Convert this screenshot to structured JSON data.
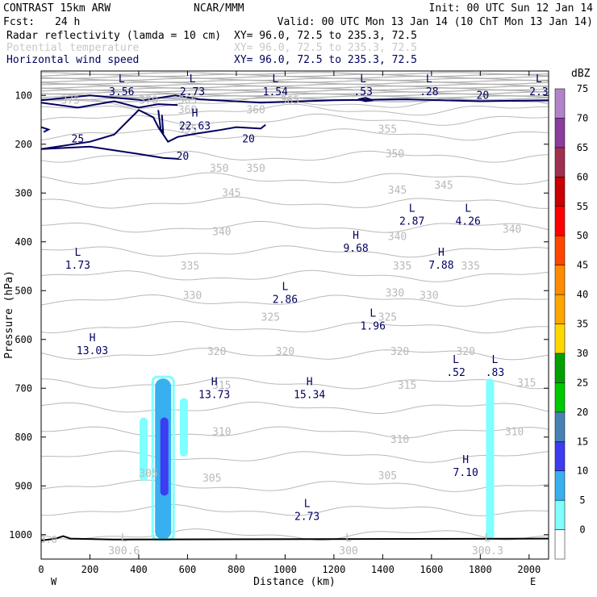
{
  "header": {
    "left1": "CONTRAST 15km ARW",
    "center1": "NCAR/MMM",
    "right1": "Init: 00 UTC Sun 12 Jan 14",
    "fcst_label": "Fcst:",
    "fcst_value": "24 h",
    "valid": "Valid: 00 UTC Mon 13 Jan 14 (10 ChT Mon 13 Jan 14)"
  },
  "fields": [
    {
      "name": "Radar reflectivity (lamda = 10 cm)",
      "xy": "XY=  96.0, 72.5 to 235.3, 72.5",
      "color": "#000000"
    },
    {
      "name": "Potential temperature",
      "xy": "XY=  96.0, 72.5 to 235.3, 72.5",
      "color": "#c8c8c8"
    },
    {
      "name": "Horizontal wind speed",
      "xy": "XY=  96.0, 72.5 to 235.3, 72.5",
      "color": "#000060"
    }
  ],
  "chart_data": {
    "type": "cross-section",
    "xlabel": "Distance (km)",
    "ylabel": "Pressure (hPa)",
    "xlim": [
      0,
      2080
    ],
    "ylim": [
      1050,
      50
    ],
    "xticks": [
      0,
      200,
      400,
      600,
      800,
      1000,
      1200,
      1400,
      1600,
      1800,
      2000
    ],
    "yticks": [
      100,
      200,
      300,
      400,
      500,
      600,
      700,
      800,
      900,
      1000
    ],
    "x_end_labels": {
      "left": "W",
      "right": "E"
    },
    "colorbar": {
      "title": "dBZ",
      "levels": [
        "0",
        "5",
        "10",
        "15",
        "20",
        "25",
        "30",
        "35",
        "40",
        "45",
        "50",
        "55",
        "60",
        "65",
        "70",
        "75"
      ],
      "colors": [
        "#ffffff",
        "#7fffff",
        "#38b0f0",
        "#3c3cf0",
        "#4682b4",
        "#00c800",
        "#00a000",
        "#ffd700",
        "#ffa500",
        "#ff8c00",
        "#ff4500",
        "#ff0000",
        "#c80000",
        "#a03050",
        "#8c3c9c",
        "#b482c8"
      ]
    },
    "reflectivity": [
      {
        "x": 500,
        "p_top": 680,
        "p_bot": 1010,
        "dbz": 10
      },
      {
        "x": 505,
        "p_top": 760,
        "p_bot": 920,
        "dbz": 15
      },
      {
        "x": 420,
        "p_top": 760,
        "p_bot": 890,
        "dbz": 5
      },
      {
        "x": 585,
        "p_top": 720,
        "p_bot": 840,
        "dbz": 5
      },
      {
        "x": 1840,
        "p_top": 680,
        "p_bot": 1010,
        "dbz": 5
      }
    ],
    "theta_contour_labels": [
      {
        "x": 120,
        "p": 110,
        "text": "375"
      },
      {
        "x": 440,
        "p": 110,
        "text": "370"
      },
      {
        "x": 600,
        "p": 110,
        "text": "365"
      },
      {
        "x": 1020,
        "p": 110,
        "text": "365"
      },
      {
        "x": 600,
        "p": 130,
        "text": "360"
      },
      {
        "x": 880,
        "p": 130,
        "text": "360"
      },
      {
        "x": 600,
        "p": 170,
        "text": "355"
      },
      {
        "x": 1420,
        "p": 170,
        "text": "355"
      },
      {
        "x": 1450,
        "p": 220,
        "text": "350"
      },
      {
        "x": 730,
        "p": 250,
        "text": "350"
      },
      {
        "x": 880,
        "p": 250,
        "text": "350"
      },
      {
        "x": 780,
        "p": 300,
        "text": "345"
      },
      {
        "x": 1460,
        "p": 295,
        "text": "345"
      },
      {
        "x": 1650,
        "p": 285,
        "text": "345"
      },
      {
        "x": 740,
        "p": 380,
        "text": "340"
      },
      {
        "x": 1460,
        "p": 390,
        "text": "340"
      },
      {
        "x": 1930,
        "p": 375,
        "text": "340"
      },
      {
        "x": 610,
        "p": 450,
        "text": "335"
      },
      {
        "x": 1480,
        "p": 450,
        "text": "335"
      },
      {
        "x": 1760,
        "p": 450,
        "text": "335"
      },
      {
        "x": 620,
        "p": 510,
        "text": "330"
      },
      {
        "x": 1450,
        "p": 505,
        "text": "330"
      },
      {
        "x": 1590,
        "p": 510,
        "text": "330"
      },
      {
        "x": 940,
        "p": 555,
        "text": "325"
      },
      {
        "x": 1420,
        "p": 555,
        "text": "325"
      },
      {
        "x": 720,
        "p": 625,
        "text": "320"
      },
      {
        "x": 1000,
        "p": 625,
        "text": "320"
      },
      {
        "x": 1470,
        "p": 625,
        "text": "320"
      },
      {
        "x": 1740,
        "p": 625,
        "text": "320"
      },
      {
        "x": 740,
        "p": 695,
        "text": "315"
      },
      {
        "x": 1500,
        "p": 695,
        "text": "315"
      },
      {
        "x": 1990,
        "p": 690,
        "text": "315"
      },
      {
        "x": 740,
        "p": 790,
        "text": "310"
      },
      {
        "x": 1470,
        "p": 805,
        "text": "310"
      },
      {
        "x": 1940,
        "p": 790,
        "text": "310"
      },
      {
        "x": 440,
        "p": 875,
        "text": "305"
      },
      {
        "x": 700,
        "p": 885,
        "text": "305"
      },
      {
        "x": 1420,
        "p": 880,
        "text": "305"
      }
    ],
    "wind_contour_labels": [
      {
        "x": 150,
        "p": 190,
        "text": "25"
      },
      {
        "x": 850,
        "p": 190,
        "text": "20"
      },
      {
        "x": 580,
        "p": 225,
        "text": "20"
      },
      {
        "x": 1810,
        "p": 100,
        "text": "20"
      }
    ],
    "high_low": [
      {
        "x": 330,
        "p": 80,
        "sym": "L",
        "value": "3.56"
      },
      {
        "x": 620,
        "p": 80,
        "sym": "L",
        "value": "2.73"
      },
      {
        "x": 960,
        "p": 80,
        "sym": "L",
        "value": "1.54"
      },
      {
        "x": 1320,
        "p": 80,
        "sym": "L",
        "value": ".53"
      },
      {
        "x": 1590,
        "p": 80,
        "sym": "L",
        "value": ".28"
      },
      {
        "x": 2040,
        "p": 80,
        "sym": "L",
        "value": "2.3"
      },
      {
        "x": 630,
        "p": 150,
        "sym": "H",
        "value": "22.63"
      },
      {
        "x": 1520,
        "p": 345,
        "sym": "L",
        "value": "2.87"
      },
      {
        "x": 1750,
        "p": 345,
        "sym": "L",
        "value": "4.26"
      },
      {
        "x": 1290,
        "p": 400,
        "sym": "H",
        "value": "9.68"
      },
      {
        "x": 150,
        "p": 435,
        "sym": "L",
        "value": "1.73"
      },
      {
        "x": 1640,
        "p": 435,
        "sym": "H",
        "value": "7.88"
      },
      {
        "x": 1000,
        "p": 505,
        "sym": "L",
        "value": "2.86"
      },
      {
        "x": 1360,
        "p": 560,
        "sym": "L",
        "value": "1.96"
      },
      {
        "x": 210,
        "p": 610,
        "sym": "H",
        "value": "13.03"
      },
      {
        "x": 1700,
        "p": 655,
        "sym": "L",
        "value": ".52"
      },
      {
        "x": 1860,
        "p": 655,
        "sym": "L",
        "value": ".83"
      },
      {
        "x": 710,
        "p": 700,
        "sym": "H",
        "value": "13.73"
      },
      {
        "x": 1100,
        "p": 700,
        "sym": "H",
        "value": "15.34"
      },
      {
        "x": 1740,
        "p": 860,
        "sym": "H",
        "value": "7.10"
      },
      {
        "x": 1090,
        "p": 950,
        "sym": "L",
        "value": "2.73"
      },
      {
        "x": 340,
        "p": 1020,
        "sym": "L",
        "value": "300.6"
      },
      {
        "x": 1260,
        "p": 1020,
        "sym": "L",
        "value": "300"
      },
      {
        "x": 1830,
        "p": 1020,
        "sym": "L",
        "value": "300.3"
      }
    ],
    "edge_labels": [
      {
        "x": 30,
        "p": 1010,
        "text": "3.0"
      }
    ]
  }
}
